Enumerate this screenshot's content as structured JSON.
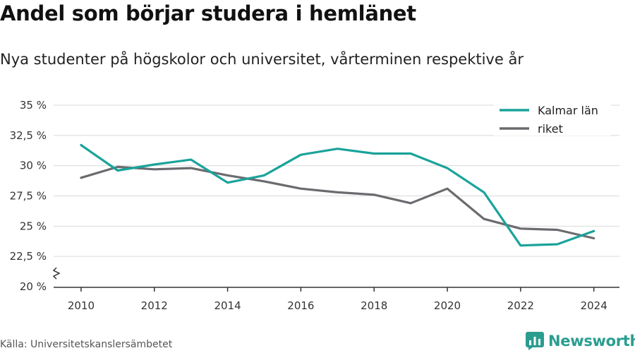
{
  "header": {
    "title": "Andel som börjar studera i hemlänet",
    "subtitle": "Nya studenter på högskolor och universitet, vårterminen respektive år"
  },
  "footer": {
    "source": "Källa: Universitetskanslersämbetet",
    "brand": "Newsworthy"
  },
  "colors": {
    "kalmar": "#1aa39a",
    "riket": "#6b6b6f",
    "grid": "#d9d9d9",
    "axis": "#333333",
    "brand": "#2a9d8f"
  },
  "chart_data": {
    "type": "line",
    "title": "Andel som börjar studera i hemlänet",
    "subtitle": "Nya studenter på högskolor och universitet, vårterminen respektive år",
    "xlabel": "",
    "ylabel": "",
    "x": [
      2010,
      2011,
      2012,
      2013,
      2014,
      2015,
      2016,
      2017,
      2018,
      2019,
      2020,
      2021,
      2022,
      2023,
      2024
    ],
    "x_ticks": [
      2010,
      2012,
      2014,
      2016,
      2018,
      2020,
      2022,
      2024
    ],
    "x_tick_labels": [
      "2010",
      "2012",
      "2014",
      "2016",
      "2018",
      "2020",
      "2022",
      "2024"
    ],
    "y_ticks": [
      20,
      22.5,
      25,
      27.5,
      30,
      32.5,
      35
    ],
    "y_tick_labels": [
      "20 %",
      "22,5 %",
      "25 %",
      "27,5 %",
      "30 %",
      "32,5 %",
      "35 %"
    ],
    "xlim": [
      2009.25,
      2024.7
    ],
    "ylim": [
      20,
      35
    ],
    "grid": true,
    "axis_break": true,
    "legend_position": "top-right",
    "series": [
      {
        "name": "Kalmar län",
        "color": "#1aa39a",
        "values": [
          31.7,
          29.6,
          30.1,
          30.5,
          28.6,
          29.2,
          30.9,
          31.4,
          31.0,
          31.0,
          29.8,
          27.8,
          23.4,
          23.5,
          24.6
        ]
      },
      {
        "name": "riket",
        "color": "#6b6b6f",
        "values": [
          29.0,
          29.9,
          29.7,
          29.8,
          29.2,
          28.7,
          28.1,
          27.8,
          27.6,
          26.9,
          28.1,
          25.6,
          24.8,
          24.7,
          24.0
        ]
      }
    ]
  }
}
